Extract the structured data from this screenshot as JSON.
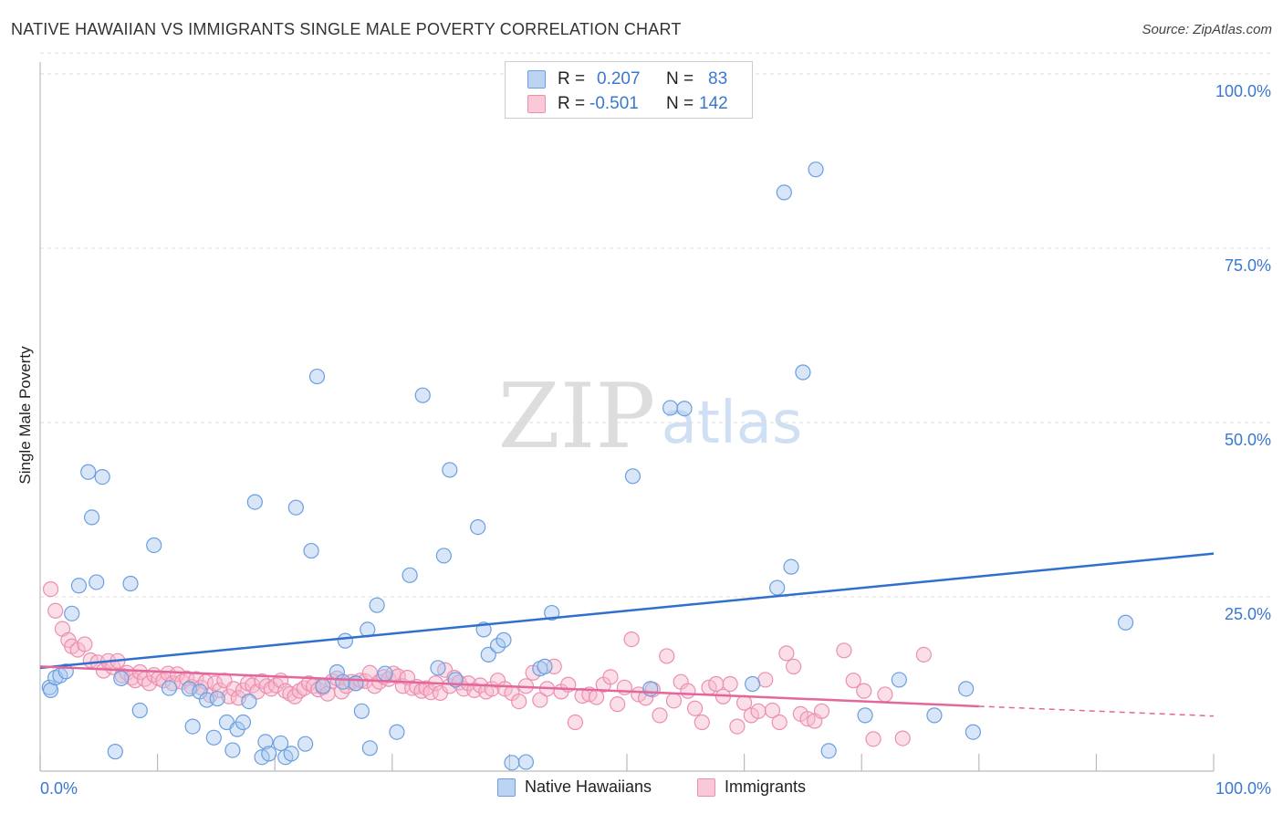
{
  "title": "NATIVE HAWAIIAN VS IMMIGRANTS SINGLE MALE POVERTY CORRELATION CHART",
  "source": "Source: ZipAtlas.com",
  "watermark": {
    "zip": "ZIP",
    "atlas": "atlas"
  },
  "legend": {
    "r_label": "R =",
    "n_label": "N =",
    "native": {
      "r": "0.207",
      "n": "83"
    },
    "immigrants": {
      "r": "-0.501",
      "n": "142"
    }
  },
  "colors": {
    "native_fill": "#a9c8f0",
    "native_stroke": "#6a9fe0",
    "native_line": "#2f6fcf",
    "immigrants_fill": "#f6b8cb",
    "immigrants_stroke": "#ec8fae",
    "immigrants_line": "#e3679a",
    "axis_text": "#3a78d0"
  },
  "chart_data": {
    "type": "scatter",
    "title": "NATIVE HAWAIIAN VS IMMIGRANTS SINGLE MALE POVERTY CORRELATION CHART",
    "xlabel": "",
    "ylabel": "Single Male Poverty",
    "xlim": [
      0,
      100
    ],
    "ylim": [
      0,
      103
    ],
    "x_tick_labels": [
      "0.0%",
      "100.0%"
    ],
    "y_tick_labels": [
      "25.0%",
      "50.0%",
      "75.0%",
      "100.0%"
    ],
    "y_ticks": [
      25,
      50,
      75,
      100
    ],
    "grid": true,
    "legend_position": "bottom",
    "series": [
      {
        "name": "Native Hawaiians",
        "r": 0.207,
        "n": 83,
        "trend": {
          "x": [
            0,
            100
          ],
          "y": [
            14.8,
            31.2
          ]
        },
        "points": [
          [
            0.8,
            12.0
          ],
          [
            0.9,
            11.6
          ],
          [
            1.3,
            13.4
          ],
          [
            1.7,
            13.7
          ],
          [
            2.2,
            14.3
          ],
          [
            2.7,
            22.6
          ],
          [
            3.3,
            26.6
          ],
          [
            4.1,
            42.9
          ],
          [
            4.4,
            36.4
          ],
          [
            4.8,
            27.1
          ],
          [
            5.3,
            42.2
          ],
          [
            6.4,
            2.8
          ],
          [
            6.9,
            13.3
          ],
          [
            7.7,
            26.9
          ],
          [
            8.5,
            8.7
          ],
          [
            9.7,
            32.4
          ],
          [
            11.0,
            11.9
          ],
          [
            12.7,
            11.8
          ],
          [
            13.0,
            6.4
          ],
          [
            13.6,
            11.4
          ],
          [
            14.2,
            10.2
          ],
          [
            14.8,
            4.8
          ],
          [
            15.1,
            10.4
          ],
          [
            15.9,
            7.0
          ],
          [
            16.4,
            3.0
          ],
          [
            16.8,
            6.0
          ],
          [
            17.3,
            7.0
          ],
          [
            17.8,
            10.0
          ],
          [
            18.3,
            38.6
          ],
          [
            18.9,
            2.0
          ],
          [
            19.2,
            4.2
          ],
          [
            19.5,
            2.5
          ],
          [
            20.5,
            4.0
          ],
          [
            20.9,
            2.0
          ],
          [
            21.4,
            2.5
          ],
          [
            21.8,
            37.8
          ],
          [
            22.6,
            3.9
          ],
          [
            23.1,
            31.6
          ],
          [
            23.6,
            56.6
          ],
          [
            24.1,
            12.2
          ],
          [
            25.3,
            14.2
          ],
          [
            25.8,
            12.8
          ],
          [
            26.0,
            18.7
          ],
          [
            26.9,
            12.6
          ],
          [
            27.4,
            8.6
          ],
          [
            27.9,
            20.3
          ],
          [
            28.1,
            3.3
          ],
          [
            28.7,
            23.8
          ],
          [
            29.4,
            14.0
          ],
          [
            30.4,
            5.6
          ],
          [
            31.5,
            28.1
          ],
          [
            32.6,
            53.9
          ],
          [
            33.9,
            14.8
          ],
          [
            34.4,
            30.9
          ],
          [
            34.9,
            43.2
          ],
          [
            35.4,
            13.1
          ],
          [
            37.3,
            35.0
          ],
          [
            37.8,
            20.3
          ],
          [
            38.2,
            16.7
          ],
          [
            39.0,
            18.0
          ],
          [
            39.5,
            18.8
          ],
          [
            40.2,
            1.2
          ],
          [
            41.4,
            1.3
          ],
          [
            42.6,
            14.7
          ],
          [
            43.0,
            15.0
          ],
          [
            43.6,
            22.7
          ],
          [
            50.5,
            42.3
          ],
          [
            52.0,
            11.8
          ],
          [
            53.7,
            52.1
          ],
          [
            54.9,
            52.0
          ],
          [
            60.7,
            12.5
          ],
          [
            62.8,
            26.3
          ],
          [
            63.4,
            83.0
          ],
          [
            64.0,
            29.3
          ],
          [
            65.0,
            57.2
          ],
          [
            66.1,
            86.3
          ],
          [
            67.2,
            2.9
          ],
          [
            70.3,
            8.0
          ],
          [
            73.2,
            13.1
          ],
          [
            76.2,
            8.0
          ],
          [
            78.9,
            11.8
          ],
          [
            79.5,
            5.6
          ],
          [
            92.5,
            21.3
          ]
        ]
      },
      {
        "name": "Immigrants",
        "r": -0.501,
        "n": 142,
        "trend": {
          "x": [
            0,
            80,
            100
          ],
          "y": [
            15.0,
            9.3,
            7.9
          ]
        },
        "points": [
          [
            0.9,
            26.1
          ],
          [
            1.3,
            23.0
          ],
          [
            1.9,
            20.4
          ],
          [
            2.4,
            18.8
          ],
          [
            2.7,
            17.9
          ],
          [
            3.2,
            17.4
          ],
          [
            3.8,
            18.2
          ],
          [
            4.3,
            15.9
          ],
          [
            4.9,
            15.6
          ],
          [
            5.4,
            14.4
          ],
          [
            5.8,
            15.8
          ],
          [
            6.2,
            14.9
          ],
          [
            6.6,
            15.8
          ],
          [
            7.0,
            13.7
          ],
          [
            7.4,
            14.1
          ],
          [
            7.8,
            13.4
          ],
          [
            8.1,
            13.0
          ],
          [
            8.5,
            14.2
          ],
          [
            8.9,
            13.2
          ],
          [
            9.3,
            12.6
          ],
          [
            9.7,
            13.8
          ],
          [
            10.1,
            13.3
          ],
          [
            10.5,
            13.0
          ],
          [
            10.9,
            14.0
          ],
          [
            11.3,
            12.6
          ],
          [
            11.7,
            13.9
          ],
          [
            12.1,
            12.8
          ],
          [
            12.5,
            13.3
          ],
          [
            12.9,
            12.1
          ],
          [
            13.3,
            13.2
          ],
          [
            13.7,
            12.0
          ],
          [
            14.1,
            12.8
          ],
          [
            14.5,
            10.9
          ],
          [
            14.9,
            12.6
          ],
          [
            15.3,
            11.6
          ],
          [
            15.7,
            13.0
          ],
          [
            16.1,
            10.7
          ],
          [
            16.5,
            11.8
          ],
          [
            16.9,
            10.5
          ],
          [
            17.3,
            11.6
          ],
          [
            17.7,
            12.6
          ],
          [
            18.1,
            12.3
          ],
          [
            18.5,
            11.4
          ],
          [
            18.9,
            12.9
          ],
          [
            19.3,
            12.2
          ],
          [
            19.7,
            11.8
          ],
          [
            20.1,
            12.3
          ],
          [
            20.5,
            13.0
          ],
          [
            20.9,
            11.5
          ],
          [
            21.3,
            11.1
          ],
          [
            21.7,
            10.7
          ],
          [
            22.1,
            11.5
          ],
          [
            22.5,
            11.9
          ],
          [
            22.9,
            12.6
          ],
          [
            23.3,
            12.2
          ],
          [
            23.7,
            11.7
          ],
          [
            24.1,
            12.0
          ],
          [
            24.5,
            11.1
          ],
          [
            24.9,
            12.9
          ],
          [
            25.3,
            13.3
          ],
          [
            25.7,
            11.4
          ],
          [
            26.1,
            12.2
          ],
          [
            26.5,
            12.8
          ],
          [
            26.9,
            12.6
          ],
          [
            27.3,
            13.0
          ],
          [
            27.7,
            12.9
          ],
          [
            28.1,
            14.1
          ],
          [
            28.5,
            12.2
          ],
          [
            28.9,
            12.8
          ],
          [
            29.3,
            13.5
          ],
          [
            29.7,
            13.2
          ],
          [
            30.1,
            14.0
          ],
          [
            30.5,
            13.6
          ],
          [
            30.9,
            12.2
          ],
          [
            31.3,
            13.4
          ],
          [
            31.7,
            11.9
          ],
          [
            32.1,
            12.1
          ],
          [
            32.5,
            11.5
          ],
          [
            32.9,
            11.9
          ],
          [
            33.3,
            11.3
          ],
          [
            33.7,
            12.6
          ],
          [
            34.1,
            11.2
          ],
          [
            34.5,
            14.5
          ],
          [
            34.9,
            12.2
          ],
          [
            35.3,
            13.4
          ],
          [
            35.7,
            12.7
          ],
          [
            36.1,
            11.8
          ],
          [
            36.5,
            12.6
          ],
          [
            37.0,
            11.6
          ],
          [
            37.5,
            12.3
          ],
          [
            38.0,
            11.4
          ],
          [
            38.5,
            11.8
          ],
          [
            39.0,
            13.0
          ],
          [
            39.6,
            11.8
          ],
          [
            40.2,
            11.2
          ],
          [
            40.8,
            10.0
          ],
          [
            41.4,
            12.2
          ],
          [
            42.0,
            14.1
          ],
          [
            42.6,
            10.2
          ],
          [
            43.2,
            11.8
          ],
          [
            43.8,
            15.0
          ],
          [
            44.4,
            11.4
          ],
          [
            45.0,
            12.4
          ],
          [
            45.6,
            7.0
          ],
          [
            46.2,
            10.8
          ],
          [
            46.8,
            11.0
          ],
          [
            47.4,
            10.6
          ],
          [
            48.0,
            12.4
          ],
          [
            48.6,
            13.5
          ],
          [
            49.2,
            9.6
          ],
          [
            49.8,
            12.0
          ],
          [
            50.4,
            18.9
          ],
          [
            51.0,
            11.0
          ],
          [
            51.6,
            10.5
          ],
          [
            52.2,
            11.7
          ],
          [
            52.8,
            8.0
          ],
          [
            53.4,
            16.5
          ],
          [
            54.0,
            10.1
          ],
          [
            54.6,
            12.8
          ],
          [
            55.2,
            11.5
          ],
          [
            55.8,
            9.0
          ],
          [
            56.4,
            7.0
          ],
          [
            57.0,
            12.0
          ],
          [
            57.6,
            12.5
          ],
          [
            58.2,
            10.7
          ],
          [
            58.8,
            12.5
          ],
          [
            59.4,
            6.4
          ],
          [
            60.0,
            9.8
          ],
          [
            60.6,
            8.0
          ],
          [
            61.2,
            8.6
          ],
          [
            61.8,
            13.1
          ],
          [
            62.4,
            8.7
          ],
          [
            63.0,
            7.0
          ],
          [
            63.6,
            16.9
          ],
          [
            64.2,
            15.0
          ],
          [
            64.8,
            8.2
          ],
          [
            65.4,
            7.5
          ],
          [
            66.0,
            7.2
          ],
          [
            66.6,
            8.6
          ],
          [
            68.5,
            17.3
          ],
          [
            69.3,
            13.0
          ],
          [
            70.2,
            11.5
          ],
          [
            71.0,
            4.6
          ],
          [
            72.0,
            11.0
          ],
          [
            73.5,
            4.7
          ],
          [
            75.3,
            16.7
          ]
        ]
      }
    ]
  },
  "bottom_legend": {
    "native": "Native Hawaiians",
    "immigrants": "Immigrants"
  }
}
